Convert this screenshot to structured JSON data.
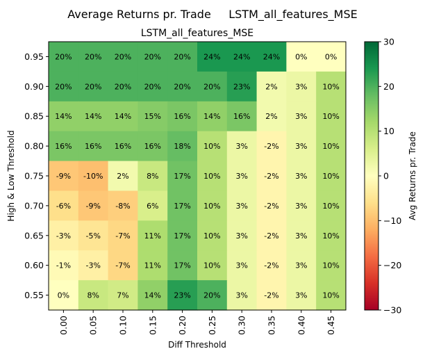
{
  "chart_data": {
    "type": "heatmap",
    "suptitle": "Average Returns pr. Trade     LSTM_all_features_MSE",
    "title": "LSTM_all_features_MSE",
    "xlabel": "Diff Threshold",
    "ylabel": "High & Low Threshold",
    "colorbar_label": "Avg Returns pr. Trade",
    "colormap": "RdYlGn",
    "vmin": -30,
    "vmax": 30,
    "colorbar_ticks": [
      30,
      20,
      10,
      0,
      -10,
      -20,
      -30
    ],
    "colorbar_tick_labels": [
      "30",
      "20",
      "10",
      "0",
      "−10",
      "−20",
      "−30"
    ],
    "x": [
      "0.00",
      "0.05",
      "0.10",
      "0.15",
      "0.20",
      "0.25",
      "0.30",
      "0.35",
      "0.40",
      "0.45"
    ],
    "y": [
      "0.95",
      "0.90",
      "0.85",
      "0.80",
      "0.75",
      "0.70",
      "0.65",
      "0.60",
      "0.55"
    ],
    "values": [
      [
        20,
        20,
        20,
        20,
        20,
        24,
        24,
        24,
        0,
        0
      ],
      [
        20,
        20,
        20,
        20,
        20,
        20,
        23,
        2,
        3,
        10
      ],
      [
        14,
        14,
        14,
        15,
        16,
        14,
        16,
        2,
        3,
        10
      ],
      [
        16,
        16,
        16,
        16,
        18,
        10,
        3,
        -2,
        3,
        10
      ],
      [
        -9,
        -10,
        2,
        8,
        17,
        10,
        3,
        -2,
        3,
        10
      ],
      [
        -6,
        -9,
        -8,
        6,
        17,
        10,
        3,
        -2,
        3,
        10
      ],
      [
        -3,
        -5,
        -7,
        11,
        17,
        10,
        3,
        -2,
        3,
        10
      ],
      [
        -1,
        -3,
        -7,
        11,
        17,
        10,
        3,
        -2,
        3,
        10
      ],
      [
        0,
        8,
        7,
        14,
        23,
        20,
        3,
        -2,
        3,
        10
      ]
    ],
    "labels": [
      [
        "20%",
        "20%",
        "20%",
        "20%",
        "20%",
        "24%",
        "24%",
        "24%",
        "0%",
        "0%"
      ],
      [
        "20%",
        "20%",
        "20%",
        "20%",
        "20%",
        "20%",
        "23%",
        "2%",
        "3%",
        "10%"
      ],
      [
        "14%",
        "14%",
        "14%",
        "15%",
        "16%",
        "14%",
        "16%",
        "2%",
        "3%",
        "10%"
      ],
      [
        "16%",
        "16%",
        "16%",
        "16%",
        "18%",
        "10%",
        "3%",
        "-2%",
        "3%",
        "10%"
      ],
      [
        "-9%",
        "-10%",
        "2%",
        "8%",
        "17%",
        "10%",
        "3%",
        "-2%",
        "3%",
        "10%"
      ],
      [
        "-6%",
        "-9%",
        "-8%",
        "6%",
        "17%",
        "10%",
        "3%",
        "-2%",
        "3%",
        "10%"
      ],
      [
        "-3%",
        "-5%",
        "-7%",
        "11%",
        "17%",
        "10%",
        "3%",
        "-2%",
        "3%",
        "10%"
      ],
      [
        "-1%",
        "-3%",
        "-7%",
        "11%",
        "17%",
        "10%",
        "3%",
        "-2%",
        "3%",
        "10%"
      ],
      [
        "0%",
        "8%",
        "7%",
        "14%",
        "23%",
        "20%",
        "3%",
        "-2%",
        "3%",
        "10%"
      ]
    ]
  }
}
